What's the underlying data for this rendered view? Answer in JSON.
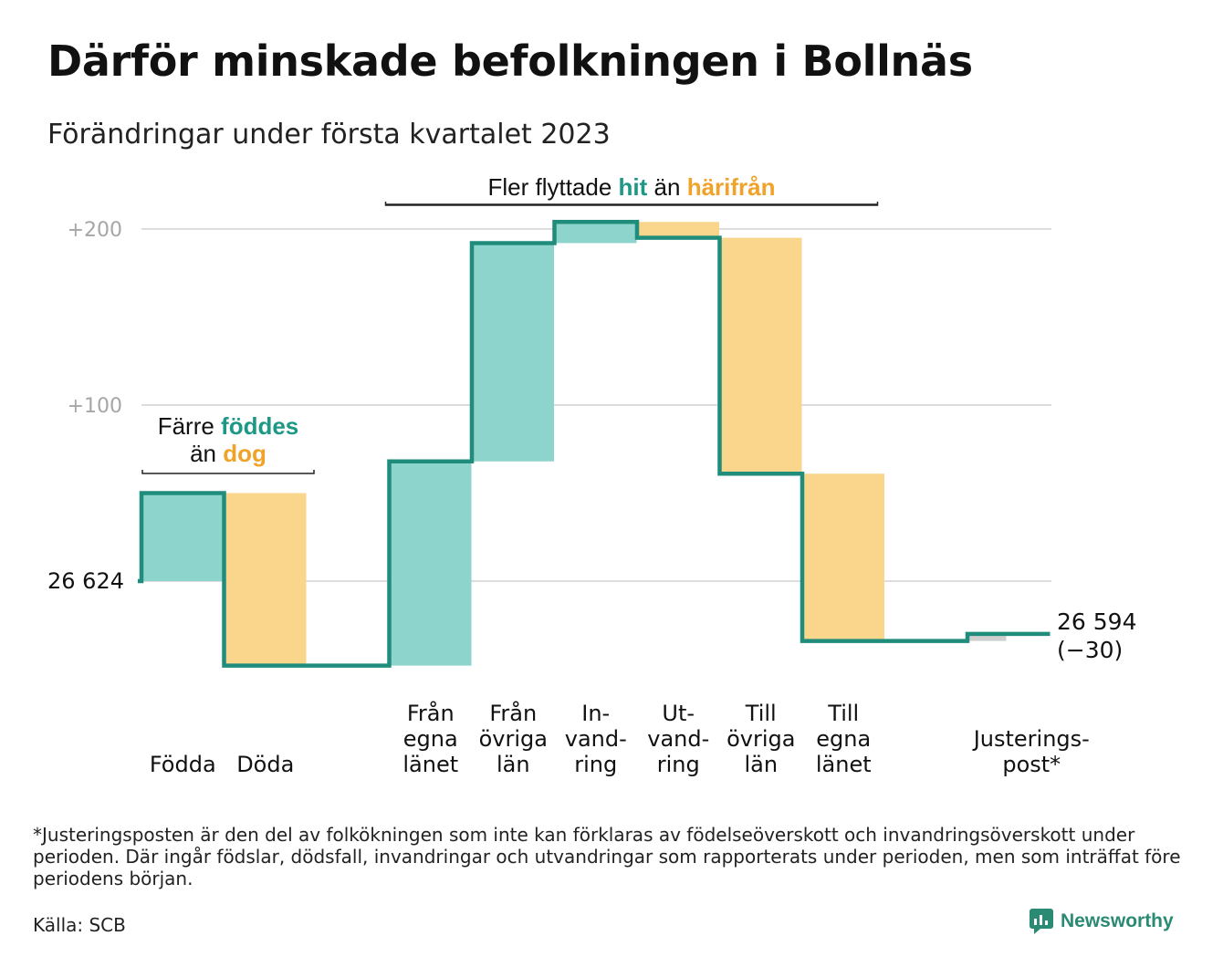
{
  "header": {
    "title": "Därför minskade befolkningen i Bollnäs",
    "subtitle": "Förändringar under första kvartalet 2023"
  },
  "annotations": {
    "migration": {
      "prefix": "Fler flyttade ",
      "hit": "hit",
      "middle": " än ",
      "harifran": "härifrån"
    },
    "births": {
      "line1_prefix": "Färre ",
      "line1_emph": "föddes",
      "line2_prefix": "än ",
      "line2_emph": "dog"
    }
  },
  "chart_data": {
    "type": "waterfall",
    "start": {
      "label": "26 624",
      "value": 26624
    },
    "end": {
      "label_value": "26 594",
      "label_change": "(−30)",
      "value": 26594,
      "change": -30
    },
    "y_ticks": [
      {
        "label": "+200",
        "value": 200
      },
      {
        "label": "+100",
        "value": 100
      }
    ],
    "steps": [
      {
        "label_lines": [
          "Födda"
        ],
        "value": 50,
        "kind": "in"
      },
      {
        "label_lines": [
          "Döda"
        ],
        "value": -98,
        "kind": "out"
      },
      {
        "label_lines": [],
        "value": 0,
        "kind": "gap"
      },
      {
        "label_lines": [
          "Från",
          "egna",
          "länet"
        ],
        "value": 116,
        "kind": "in"
      },
      {
        "label_lines": [
          "Från",
          "övriga",
          "län"
        ],
        "value": 124,
        "kind": "in"
      },
      {
        "label_lines": [
          "In-",
          "vand-",
          "ring"
        ],
        "value": 12,
        "kind": "in"
      },
      {
        "label_lines": [
          "Ut-",
          "vand-",
          "ring"
        ],
        "value": -9,
        "kind": "out"
      },
      {
        "label_lines": [
          "Till",
          "övriga",
          "län"
        ],
        "value": -134,
        "kind": "out"
      },
      {
        "label_lines": [
          "Till",
          "egna",
          "länet"
        ],
        "value": -95,
        "kind": "out"
      },
      {
        "label_lines": [],
        "value": 0,
        "kind": "gap"
      },
      {
        "label_lines": [
          "Justerings-",
          "post*"
        ],
        "value": 4,
        "kind": "adj"
      }
    ],
    "colors": {
      "in": "#8dd5cc",
      "out": "#f9d68c",
      "adj": "#cfcfcf",
      "line": "#1f8c7c",
      "teal_text": "#1e9886",
      "orange_text": "#f0a229",
      "grid": "#dddddd",
      "tick_text": "#a6a6a6"
    }
  },
  "footnote": "*Justeringsposten är den del av folkökningen som inte kan förklaras av födelseöverskott och invandringsöverskott under perioden. Där ingår födslar, dödsfall, invandringar och utvandringar som rapporterats under perioden, men som inträffat före periodens början.",
  "source": "Källa: SCB",
  "brand": {
    "name": "Newsworthy",
    "logo_icon": "newsworthy-logo-icon"
  }
}
